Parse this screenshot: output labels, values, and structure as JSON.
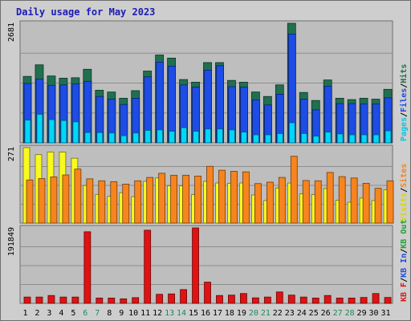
{
  "chart_data": {
    "type": "bar",
    "title": "Daily usage for May 2023",
    "categories": [
      "1",
      "2",
      "3",
      "4",
      "5",
      "6",
      "7",
      "8",
      "9",
      "10",
      "11",
      "12",
      "13",
      "14",
      "15",
      "16",
      "17",
      "18",
      "19",
      "20",
      "21",
      "22",
      "23",
      "24",
      "25",
      "26",
      "27",
      "28",
      "29",
      "30",
      "31"
    ],
    "weekend_days": [
      "6",
      "7",
      "13",
      "14",
      "20",
      "21",
      "27",
      "28"
    ],
    "panels": [
      {
        "name": "top",
        "tick_label": "2681",
        "ylim": [
          0,
          2681
        ],
        "legend": [
          "Pages",
          "Files",
          "Hits"
        ],
        "series": [
          {
            "name": "Hits",
            "color": "#207050",
            "values": [
              1490,
              1750,
              1500,
              1450,
              1460,
              1650,
              1180,
              1140,
              1000,
              1170,
              1610,
              1970,
              1900,
              1420,
              1360,
              1800,
              1800,
              1400,
              1360,
              1140,
              1040,
              1300,
              2681,
              1130,
              950,
              1410,
              1000,
              970,
              1000,
              980,
              1200
            ]
          },
          {
            "name": "Files",
            "color": "#1d4ce6",
            "values": [
              1330,
              1430,
              1290,
              1300,
              1320,
              1380,
              1040,
              980,
              860,
              1000,
              1480,
              1810,
              1720,
              1300,
              1250,
              1630,
              1730,
              1260,
              1250,
              960,
              850,
              1090,
              2440,
              980,
              740,
              1270,
              880,
              880,
              870,
              870,
              1010
            ]
          },
          {
            "name": "Pages",
            "color": "#00d7f8",
            "values": [
              510,
              640,
              520,
              500,
              470,
              230,
              230,
              220,
              160,
              220,
              280,
              290,
              260,
              340,
              260,
              310,
              310,
              290,
              240,
              180,
              180,
              210,
              450,
              210,
              150,
              240,
              200,
              180,
              180,
              180,
              270
            ]
          }
        ]
      },
      {
        "name": "middle",
        "tick_label": "271",
        "ylim": [
          0,
          271
        ],
        "legend": [
          "Visits",
          "Sites"
        ],
        "series": [
          {
            "name": "Visits",
            "color": "#f9f922",
            "values": [
              271,
              246,
              255,
              255,
              233,
              135,
              103,
              96,
              109,
              95,
              150,
              162,
              134,
              134,
              102,
              150,
              144,
              143,
              144,
              101,
              81,
              126,
              144,
              105,
              102,
              124,
              82,
              75,
              90,
              81,
              120
            ]
          },
          {
            "name": "Sites",
            "color": "#f7841e",
            "values": [
              155,
              160,
              166,
              173,
              194,
              159,
              152,
              149,
              140,
              152,
              164,
              179,
              172,
              172,
              169,
              204,
              190,
              186,
              184,
              142,
              147,
              164,
              240,
              153,
              152,
              182,
              167,
              162,
              143,
              125,
              152
            ]
          }
        ]
      },
      {
        "name": "bottom",
        "tick_label": "191849",
        "ylim": [
          0,
          191849
        ],
        "legend": [
          "KB F",
          "KB In",
          "KB Out"
        ],
        "series": [
          {
            "name": "KB F",
            "color": "#e11212",
            "values": [
              16000,
              16000,
              20000,
              16000,
              16000,
              182000,
              13500,
              13500,
              11500,
              14500,
              186000,
              23000,
              24000,
              35000,
              191849,
              54000,
              20000,
              21000,
              25000,
              14000,
              16000,
              29000,
              21000,
              16000,
              13500,
              20000,
              13500,
              13500,
              15000,
              25000,
              15000
            ]
          }
        ]
      }
    ]
  }
}
